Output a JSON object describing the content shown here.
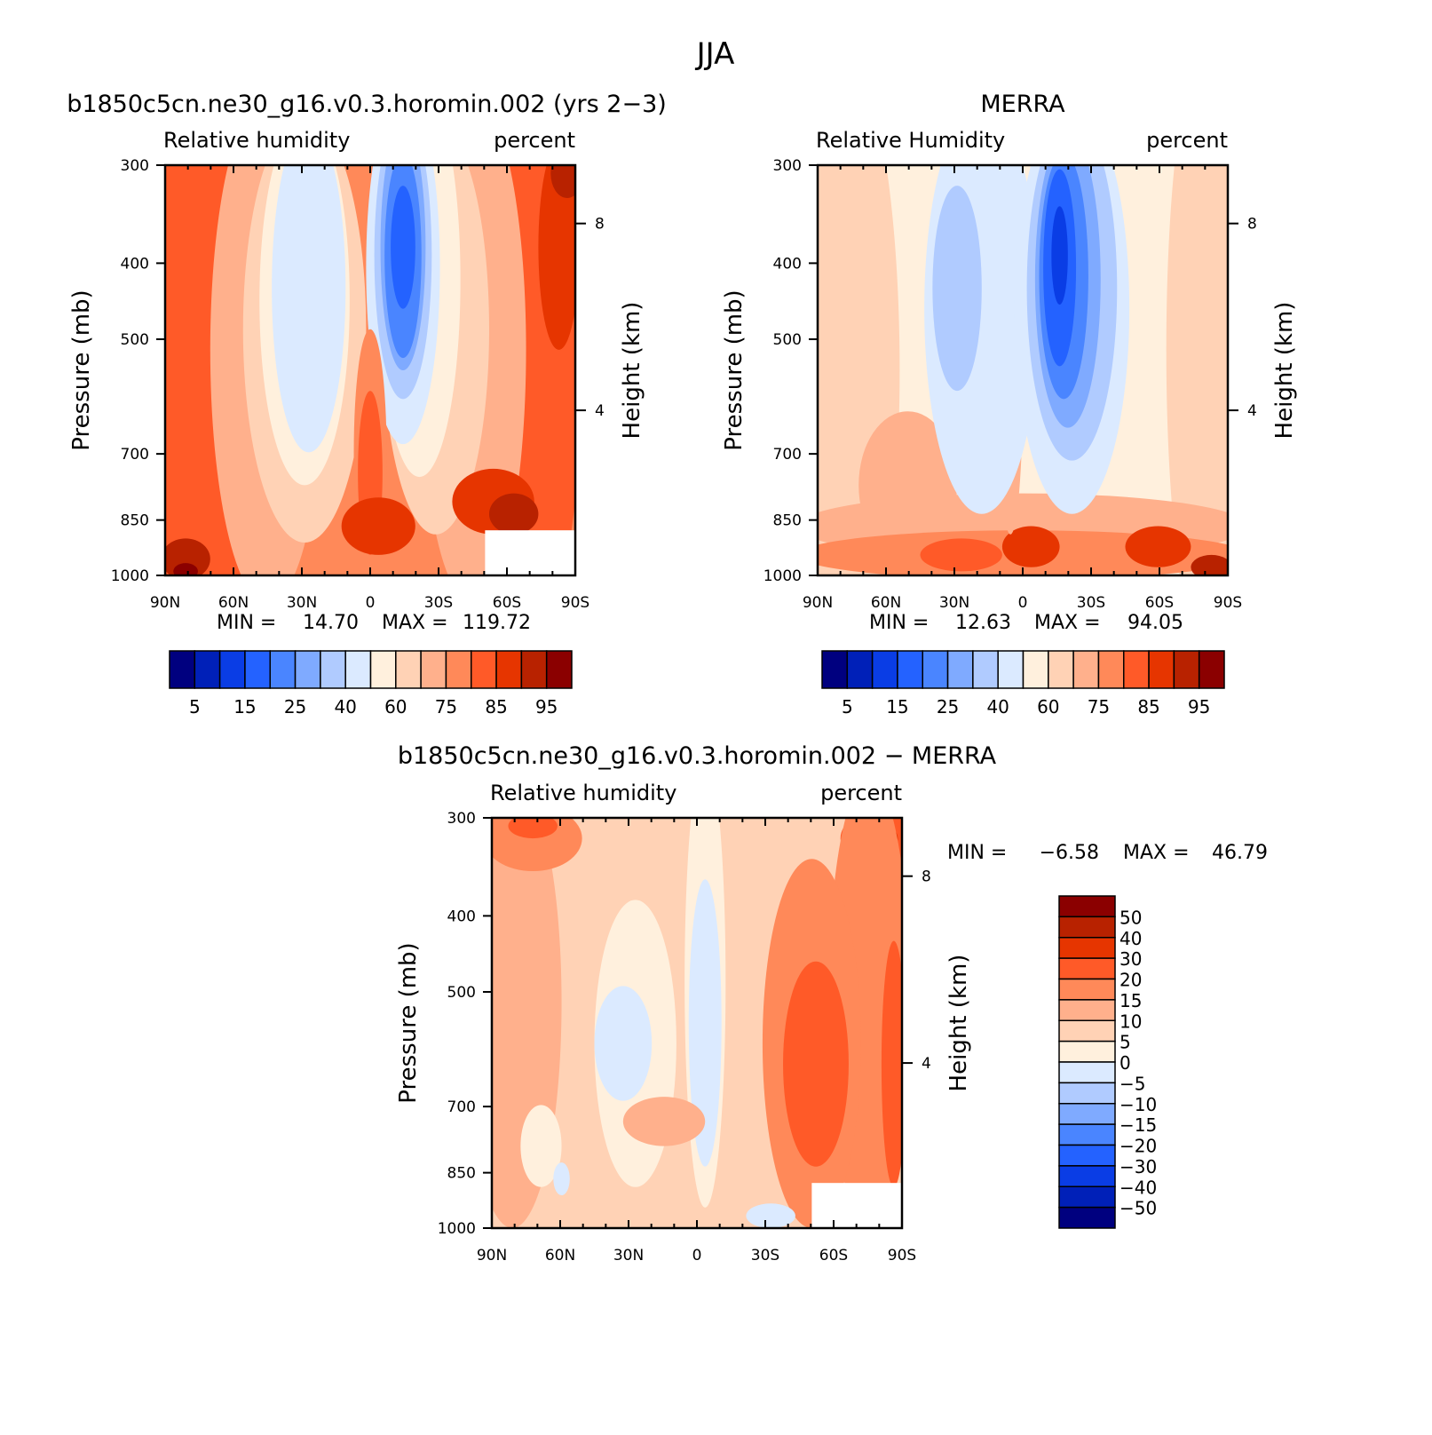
{
  "figure_title": "JJA",
  "chart_data": [
    {
      "type": "heatmap",
      "panel": "model",
      "title": "b1850c5cn.ne30_g16.v0.3.horomin.002 (yrs 2−3)",
      "left_string": "Relative humidity",
      "right_string": "percent",
      "ylabel": "Pressure (mb)",
      "y2label": "Height (km)",
      "x_ticks": [
        "90N",
        "60N",
        "30N",
        "0",
        "30S",
        "60S",
        "90S"
      ],
      "y_ticks": [
        "300",
        "400",
        "500",
        "700",
        "850",
        "1000"
      ],
      "y2_ticks": [
        "8",
        "4"
      ],
      "min_label": "MIN =",
      "min_value": "14.70",
      "max_label": "MAX =",
      "max_value": "119.72",
      "colorbar": {
        "orientation": "horizontal",
        "colors": [
          "#00007f",
          "#0020b8",
          "#0a3de5",
          "#2462ff",
          "#4a85ff",
          "#7faaff",
          "#b0cbff",
          "#dbeaff",
          "#fff0dd",
          "#ffd2b5",
          "#ffb08c",
          "#ff8959",
          "#ff5a28",
          "#e63500",
          "#b82200",
          "#8b0000"
        ],
        "labels": [
          "5",
          "15",
          "25",
          "40",
          "60",
          "75",
          "85",
          "95"
        ]
      }
    },
    {
      "type": "heatmap",
      "panel": "obs",
      "title": "MERRA",
      "left_string": "Relative Humidity",
      "right_string": "percent",
      "ylabel": "Pressure (mb)",
      "y2label": "Height (km)",
      "x_ticks": [
        "90N",
        "60N",
        "30N",
        "0",
        "30S",
        "60S",
        "90S"
      ],
      "y_ticks": [
        "300",
        "400",
        "500",
        "700",
        "850",
        "1000"
      ],
      "y2_ticks": [
        "8",
        "4"
      ],
      "min_label": "MIN =",
      "min_value": "12.63",
      "max_label": "MAX =",
      "max_value": "94.05",
      "colorbar": {
        "orientation": "horizontal",
        "colors": [
          "#00007f",
          "#0020b8",
          "#0a3de5",
          "#2462ff",
          "#4a85ff",
          "#7faaff",
          "#b0cbff",
          "#dbeaff",
          "#fff0dd",
          "#ffd2b5",
          "#ffb08c",
          "#ff8959",
          "#ff5a28",
          "#e63500",
          "#b82200",
          "#8b0000"
        ],
        "labels": [
          "5",
          "15",
          "25",
          "40",
          "60",
          "75",
          "85",
          "95"
        ]
      }
    },
    {
      "type": "heatmap",
      "panel": "diff",
      "title": "b1850c5cn.ne30_g16.v0.3.horomin.002 − MERRA",
      "left_string": "Relative humidity",
      "right_string": "percent",
      "ylabel": "Pressure (mb)",
      "y2label": "Height (km)",
      "x_ticks": [
        "90N",
        "60N",
        "30N",
        "0",
        "30S",
        "60S",
        "90S"
      ],
      "y_ticks": [
        "300",
        "400",
        "500",
        "700",
        "850",
        "1000"
      ],
      "y2_ticks": [
        "8",
        "4"
      ],
      "min_label": "MIN =",
      "min_value": "−6.58",
      "max_label": "MAX =",
      "max_value": "46.79",
      "colorbar": {
        "orientation": "vertical",
        "colors": [
          "#8b0000",
          "#b82200",
          "#e63500",
          "#ff5a28",
          "#ff8959",
          "#ffb08c",
          "#ffd2b5",
          "#fff0dd",
          "#dbeaff",
          "#b0cbff",
          "#7faaff",
          "#4a85ff",
          "#2462ff",
          "#0a3de5",
          "#0020b8",
          "#00007f"
        ],
        "labels": [
          "50",
          "40",
          "30",
          "20",
          "15",
          "10",
          "5",
          "0",
          "−5",
          "−10",
          "−15",
          "−20",
          "−30",
          "−40",
          "−50"
        ]
      }
    }
  ]
}
